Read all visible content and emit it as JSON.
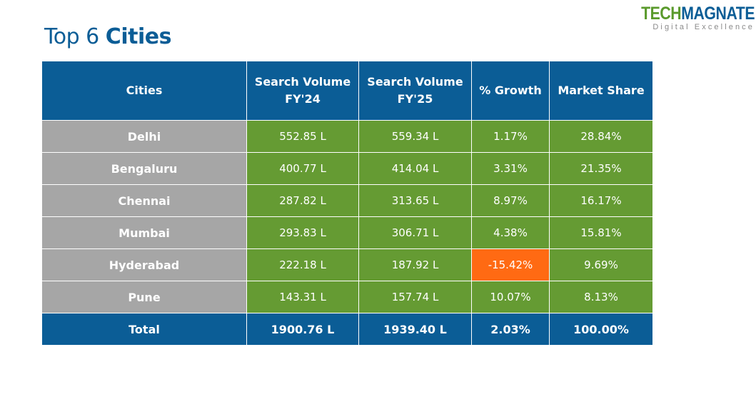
{
  "logo": {
    "part1": "TECH",
    "part2": "MAGNATE",
    "tagline": "Digital Excellence"
  },
  "title": {
    "prefix": "Top 6",
    "emphasis": "Cities"
  },
  "table": {
    "header": [
      "Cities",
      "Search Volume FY'24",
      "Search Volume FY'25",
      "% Growth",
      "Market Share"
    ],
    "rows": [
      [
        "Delhi",
        "552.85 L",
        "559.34 L",
        "1.17%",
        "28.84%"
      ],
      [
        "Bengaluru",
        "400.77 L",
        "414.04 L",
        "3.31%",
        "21.35%"
      ],
      [
        "Chennai",
        "287.82 L",
        "313.65 L",
        "8.97%",
        "16.17%"
      ],
      [
        "Mumbai",
        "293.83 L",
        "306.71 L",
        "4.38%",
        "15.81%"
      ],
      [
        "Hyderabad",
        "222.18 L",
        "187.92 L",
        "-15.42%",
        "9.69%"
      ],
      [
        "Pune",
        "143.31 L",
        "157.74 L",
        "10.07%",
        "8.13%"
      ]
    ],
    "total": [
      "Total",
      "1900.76 L",
      "1939.40 L",
      "2.03%",
      "100.00%"
    ]
  }
}
